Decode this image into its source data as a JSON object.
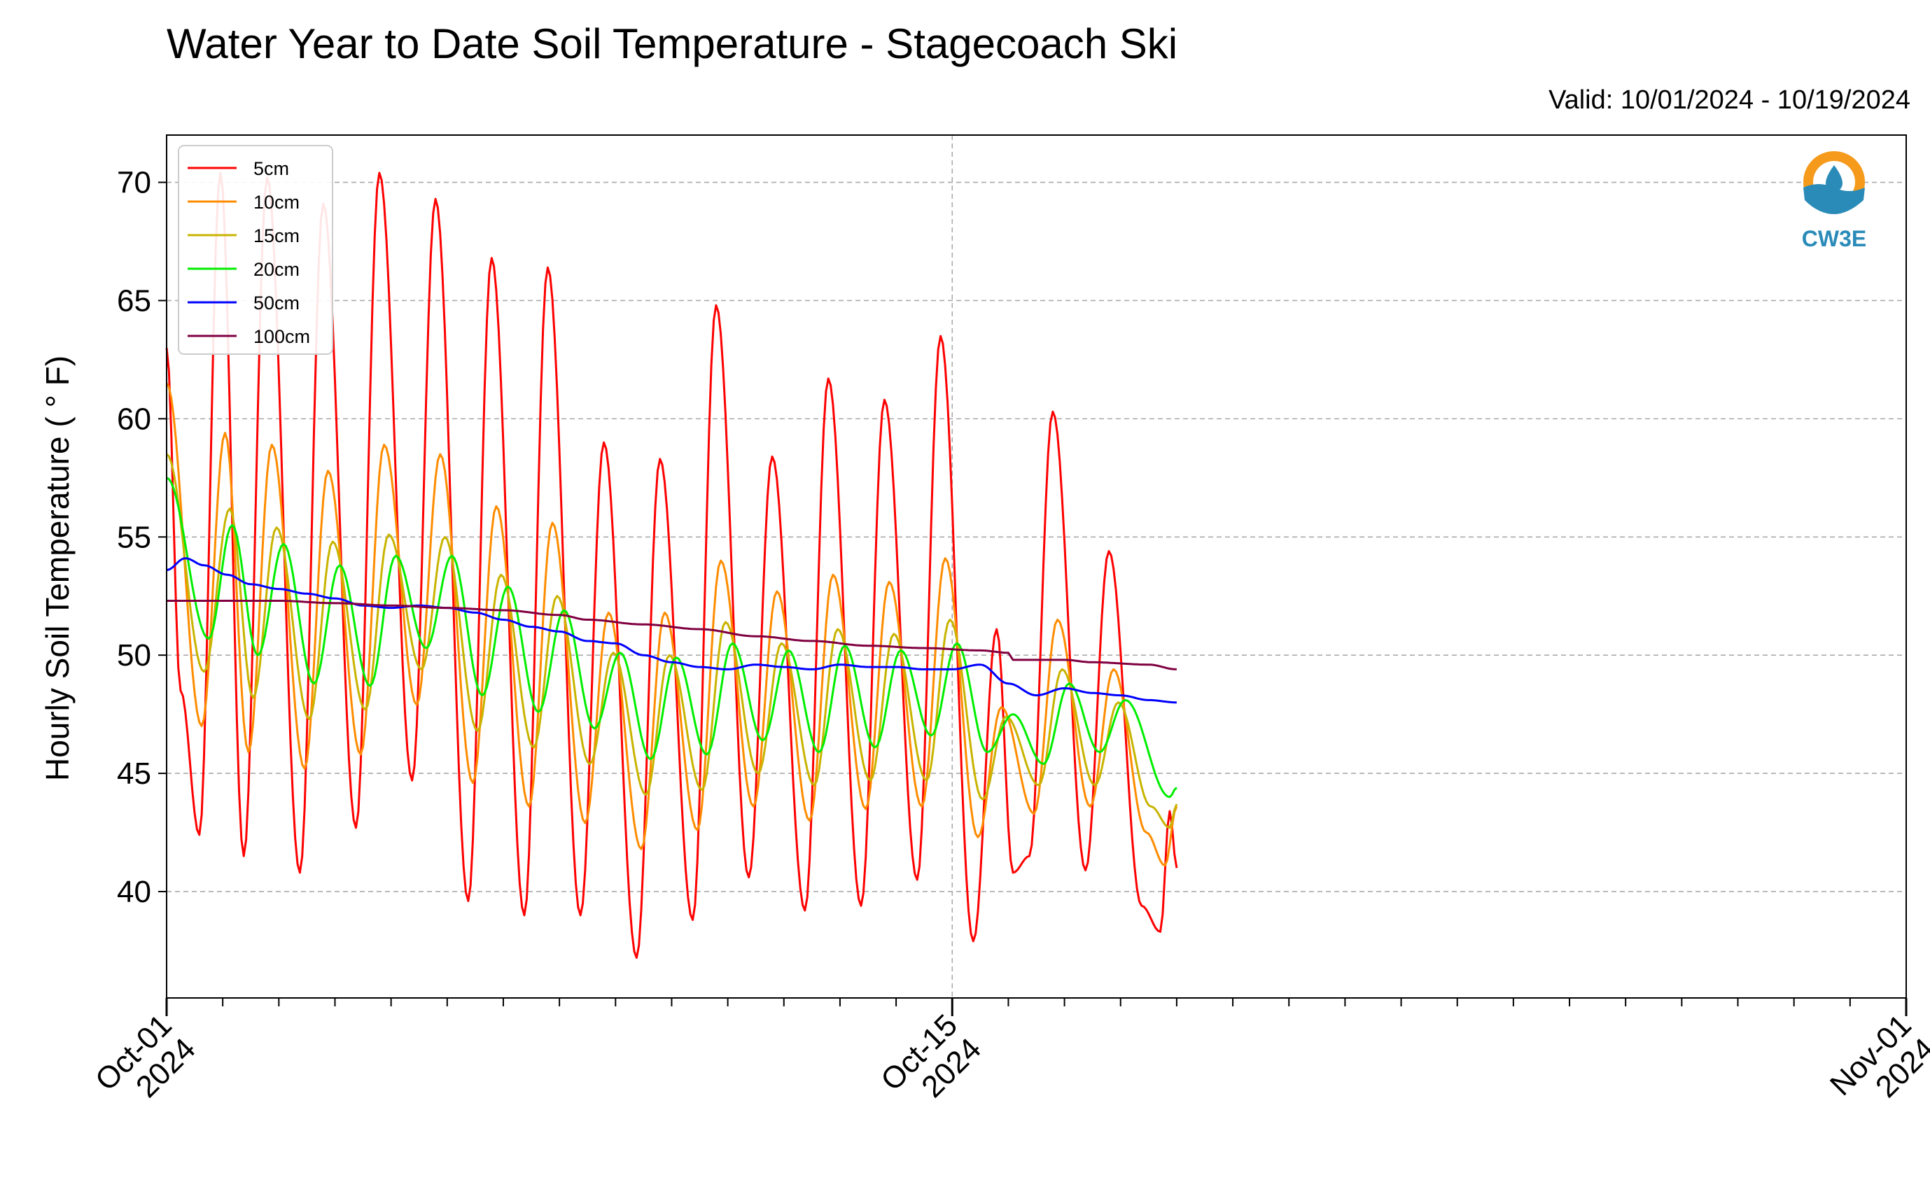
{
  "chart_data": {
    "type": "line",
    "title": "Water Year to Date Soil Temperature - Stagecoach Ski",
    "subtitle": "Valid: 10/01/2024 - 10/19/2024",
    "xlabel": "",
    "ylabel": "Hourly Soil Temperature ( ° F)",
    "xlim": [
      "2024-10-01",
      "2024-11-01"
    ],
    "ylim": [
      35.5,
      72
    ],
    "x_ticks": [
      {
        "date": "2024-10-01",
        "line1": "Oct-01",
        "line2": "2024"
      },
      {
        "date": "2024-10-15",
        "line1": "Oct-15",
        "line2": "2024"
      },
      {
        "date": "2024-11-01",
        "line1": "Nov-01",
        "line2": "2024"
      }
    ],
    "y_ticks": [
      40,
      45,
      50,
      55,
      60,
      65,
      70
    ],
    "grid": true,
    "legend_position": "top-left",
    "logo_text": "CW3E",
    "series": [
      {
        "name": "5cm",
        "color": "#ff0000",
        "points": [
          [
            "2024-10-01T00:00",
            63.0
          ],
          [
            "2024-10-01T06:00",
            48.5
          ],
          [
            "2024-10-01T14:00",
            42.4
          ],
          [
            "2024-10-01T23:00",
            70.4
          ],
          [
            "2024-10-02T09:00",
            41.5
          ],
          [
            "2024-10-02T19:00",
            70.2
          ],
          [
            "2024-10-03T09:00",
            40.8
          ],
          [
            "2024-10-03T19:00",
            69.1
          ],
          [
            "2024-10-04T09:00",
            42.7
          ],
          [
            "2024-10-04T19:00",
            70.4
          ],
          [
            "2024-10-05T09:00",
            44.7
          ],
          [
            "2024-10-05T19:00",
            69.3
          ],
          [
            "2024-10-06T09:00",
            39.6
          ],
          [
            "2024-10-06T19:00",
            66.8
          ],
          [
            "2024-10-07T09:00",
            39.0
          ],
          [
            "2024-10-07T19:00",
            66.4
          ],
          [
            "2024-10-08T09:00",
            39.0
          ],
          [
            "2024-10-08T19:00",
            59.0
          ],
          [
            "2024-10-09T09:00",
            37.2
          ],
          [
            "2024-10-09T19:00",
            58.3
          ],
          [
            "2024-10-10T09:00",
            38.8
          ],
          [
            "2024-10-10T19:00",
            64.8
          ],
          [
            "2024-10-11T09:00",
            40.6
          ],
          [
            "2024-10-11T19:00",
            58.4
          ],
          [
            "2024-10-12T09:00",
            39.2
          ],
          [
            "2024-10-12T19:00",
            61.7
          ],
          [
            "2024-10-13T09:00",
            39.4
          ],
          [
            "2024-10-13T19:00",
            60.8
          ],
          [
            "2024-10-14T09:00",
            40.5
          ],
          [
            "2024-10-14T19:00",
            63.5
          ],
          [
            "2024-10-15T09:00",
            37.9
          ],
          [
            "2024-10-15T19:00",
            51.1
          ],
          [
            "2024-10-16T02:00",
            40.8
          ],
          [
            "2024-10-16T09:00",
            41.5
          ],
          [
            "2024-10-16T19:00",
            60.3
          ],
          [
            "2024-10-17T09:00",
            40.9
          ],
          [
            "2024-10-17T19:00",
            54.4
          ],
          [
            "2024-10-18T09:00",
            39.4
          ],
          [
            "2024-10-18T17:00",
            38.3
          ],
          [
            "2024-10-18T21:00",
            43.4
          ],
          [
            "2024-10-19T00:00",
            41.0
          ]
        ]
      },
      {
        "name": "10cm",
        "color": "#ff8c00",
        "points": [
          [
            "2024-10-01T00:00",
            61.5
          ],
          [
            "2024-10-01T15:00",
            47.0
          ],
          [
            "2024-10-02T01:00",
            59.4
          ],
          [
            "2024-10-02T11:00",
            45.9
          ],
          [
            "2024-10-02T21:00",
            58.9
          ],
          [
            "2024-10-03T11:00",
            45.2
          ],
          [
            "2024-10-03T21:00",
            57.8
          ],
          [
            "2024-10-04T11:00",
            45.8
          ],
          [
            "2024-10-04T21:00",
            58.9
          ],
          [
            "2024-10-05T11:00",
            47.9
          ],
          [
            "2024-10-05T21:00",
            58.5
          ],
          [
            "2024-10-06T11:00",
            44.6
          ],
          [
            "2024-10-06T21:00",
            56.3
          ],
          [
            "2024-10-07T11:00",
            43.6
          ],
          [
            "2024-10-07T21:00",
            55.6
          ],
          [
            "2024-10-08T11:00",
            42.9
          ],
          [
            "2024-10-08T21:00",
            51.8
          ],
          [
            "2024-10-09T11:00",
            41.8
          ],
          [
            "2024-10-09T21:00",
            51.8
          ],
          [
            "2024-10-10T11:00",
            42.6
          ],
          [
            "2024-10-10T21:00",
            54.0
          ],
          [
            "2024-10-11T11:00",
            43.6
          ],
          [
            "2024-10-11T21:00",
            52.7
          ],
          [
            "2024-10-12T11:00",
            43.0
          ],
          [
            "2024-10-12T21:00",
            53.4
          ],
          [
            "2024-10-13T11:00",
            43.5
          ],
          [
            "2024-10-13T21:00",
            53.1
          ],
          [
            "2024-10-14T11:00",
            43.6
          ],
          [
            "2024-10-14T21:00",
            54.1
          ],
          [
            "2024-10-15T11:00",
            42.3
          ],
          [
            "2024-10-15T21:00",
            47.8
          ],
          [
            "2024-10-16T11:00",
            43.3
          ],
          [
            "2024-10-16T21:00",
            51.5
          ],
          [
            "2024-10-17T11:00",
            43.6
          ],
          [
            "2024-10-17T21:00",
            49.4
          ],
          [
            "2024-10-18T11:00",
            42.5
          ],
          [
            "2024-10-18T19:00",
            41.1
          ],
          [
            "2024-10-19T00:00",
            43.6
          ]
        ]
      },
      {
        "name": "15cm",
        "color": "#c8b400",
        "points": [
          [
            "2024-10-01T00:00",
            58.5
          ],
          [
            "2024-10-01T16:00",
            49.3
          ],
          [
            "2024-10-02T03:00",
            56.2
          ],
          [
            "2024-10-02T13:00",
            48.2
          ],
          [
            "2024-10-02T23:00",
            55.4
          ],
          [
            "2024-10-03T13:00",
            47.3
          ],
          [
            "2024-10-03T23:00",
            54.8
          ],
          [
            "2024-10-04T13:00",
            47.7
          ],
          [
            "2024-10-04T23:00",
            55.1
          ],
          [
            "2024-10-05T13:00",
            49.4
          ],
          [
            "2024-10-05T23:00",
            55.0
          ],
          [
            "2024-10-06T13:00",
            46.8
          ],
          [
            "2024-10-06T23:00",
            53.4
          ],
          [
            "2024-10-07T13:00",
            46.1
          ],
          [
            "2024-10-07T23:00",
            52.5
          ],
          [
            "2024-10-08T13:00",
            45.4
          ],
          [
            "2024-10-08T23:00",
            50.1
          ],
          [
            "2024-10-09T13:00",
            44.1
          ],
          [
            "2024-10-09T23:00",
            50.0
          ],
          [
            "2024-10-10T13:00",
            44.3
          ],
          [
            "2024-10-10T23:00",
            51.4
          ],
          [
            "2024-10-11T13:00",
            45.0
          ],
          [
            "2024-10-11T23:00",
            50.5
          ],
          [
            "2024-10-12T13:00",
            44.5
          ],
          [
            "2024-10-12T23:00",
            51.1
          ],
          [
            "2024-10-13T13:00",
            44.7
          ],
          [
            "2024-10-13T23:00",
            50.9
          ],
          [
            "2024-10-14T13:00",
            44.7
          ],
          [
            "2024-10-14T23:00",
            51.5
          ],
          [
            "2024-10-15T13:00",
            43.9
          ],
          [
            "2024-10-15T23:00",
            47.4
          ],
          [
            "2024-10-16T13:00",
            44.5
          ],
          [
            "2024-10-16T23:00",
            49.4
          ],
          [
            "2024-10-17T13:00",
            44.5
          ],
          [
            "2024-10-17T23:00",
            48.0
          ],
          [
            "2024-10-18T13:00",
            43.6
          ],
          [
            "2024-10-18T21:00",
            42.7
          ],
          [
            "2024-10-19T00:00",
            43.7
          ]
        ]
      },
      {
        "name": "20cm",
        "color": "#00ee00",
        "points": [
          [
            "2024-10-01T00:00",
            57.5
          ],
          [
            "2024-10-01T18:00",
            50.7
          ],
          [
            "2024-10-02T04:00",
            55.5
          ],
          [
            "2024-10-02T15:00",
            50.0
          ],
          [
            "2024-10-03T02:00",
            54.7
          ],
          [
            "2024-10-03T15:00",
            48.8
          ],
          [
            "2024-10-04T02:00",
            53.8
          ],
          [
            "2024-10-04T15:00",
            48.7
          ],
          [
            "2024-10-05T02:00",
            54.2
          ],
          [
            "2024-10-05T15:00",
            50.3
          ],
          [
            "2024-10-06T02:00",
            54.2
          ],
          [
            "2024-10-06T15:00",
            48.3
          ],
          [
            "2024-10-07T02:00",
            52.9
          ],
          [
            "2024-10-07T15:00",
            47.6
          ],
          [
            "2024-10-08T02:00",
            51.9
          ],
          [
            "2024-10-08T15:00",
            46.9
          ],
          [
            "2024-10-09T02:00",
            50.1
          ],
          [
            "2024-10-09T15:00",
            45.6
          ],
          [
            "2024-10-10T02:00",
            49.9
          ],
          [
            "2024-10-10T15:00",
            45.8
          ],
          [
            "2024-10-11T02:00",
            50.5
          ],
          [
            "2024-10-11T15:00",
            46.4
          ],
          [
            "2024-10-12T02:00",
            50.2
          ],
          [
            "2024-10-12T15:00",
            45.9
          ],
          [
            "2024-10-13T02:00",
            50.4
          ],
          [
            "2024-10-13T15:00",
            46.1
          ],
          [
            "2024-10-14T02:00",
            50.2
          ],
          [
            "2024-10-14T15:00",
            46.6
          ],
          [
            "2024-10-15T02:00",
            50.5
          ],
          [
            "2024-10-15T15:00",
            45.9
          ],
          [
            "2024-10-16T02:00",
            47.5
          ],
          [
            "2024-10-16T15:00",
            45.4
          ],
          [
            "2024-10-17T02:00",
            48.8
          ],
          [
            "2024-10-17T15:00",
            45.9
          ],
          [
            "2024-10-18T02:00",
            48.1
          ],
          [
            "2024-10-18T21:00",
            44.0
          ],
          [
            "2024-10-19T00:00",
            44.4
          ]
        ]
      },
      {
        "name": "50cm",
        "color": "#0000ff",
        "points": [
          [
            "2024-10-01T00:00",
            53.6
          ],
          [
            "2024-10-01T08:00",
            54.1
          ],
          [
            "2024-10-01T16:00",
            53.8
          ],
          [
            "2024-10-02T02:00",
            53.4
          ],
          [
            "2024-10-02T12:00",
            53.0
          ],
          [
            "2024-10-03T00:00",
            52.8
          ],
          [
            "2024-10-03T12:00",
            52.6
          ],
          [
            "2024-10-04T00:00",
            52.4
          ],
          [
            "2024-10-04T12:00",
            52.1
          ],
          [
            "2024-10-05T00:00",
            52.0
          ],
          [
            "2024-10-05T12:00",
            52.1
          ],
          [
            "2024-10-06T00:00",
            52.0
          ],
          [
            "2024-10-06T12:00",
            51.8
          ],
          [
            "2024-10-07T00:00",
            51.5
          ],
          [
            "2024-10-07T12:00",
            51.2
          ],
          [
            "2024-10-08T00:00",
            51.0
          ],
          [
            "2024-10-08T12:00",
            50.6
          ],
          [
            "2024-10-09T00:00",
            50.5
          ],
          [
            "2024-10-09T12:00",
            50.0
          ],
          [
            "2024-10-10T00:00",
            49.7
          ],
          [
            "2024-10-10T12:00",
            49.5
          ],
          [
            "2024-10-11T00:00",
            49.4
          ],
          [
            "2024-10-11T12:00",
            49.6
          ],
          [
            "2024-10-12T00:00",
            49.5
          ],
          [
            "2024-10-12T12:00",
            49.4
          ],
          [
            "2024-10-13T00:00",
            49.6
          ],
          [
            "2024-10-13T12:00",
            49.5
          ],
          [
            "2024-10-14T00:00",
            49.5
          ],
          [
            "2024-10-14T12:00",
            49.4
          ],
          [
            "2024-10-15T00:00",
            49.4
          ],
          [
            "2024-10-15T12:00",
            49.6
          ],
          [
            "2024-10-16T00:00",
            48.8
          ],
          [
            "2024-10-16T12:00",
            48.3
          ],
          [
            "2024-10-17T00:00",
            48.6
          ],
          [
            "2024-10-17T12:00",
            48.4
          ],
          [
            "2024-10-18T00:00",
            48.3
          ],
          [
            "2024-10-18T12:00",
            48.1
          ],
          [
            "2024-10-19T00:00",
            48.0
          ]
        ]
      },
      {
        "name": "100cm",
        "color": "#800040",
        "points": [
          [
            "2024-10-01T00:00",
            52.3
          ],
          [
            "2024-10-02T00:00",
            52.3
          ],
          [
            "2024-10-03T00:00",
            52.3
          ],
          [
            "2024-10-04T00:00",
            52.2
          ],
          [
            "2024-10-05T00:00",
            52.1
          ],
          [
            "2024-10-06T00:00",
            52.0
          ],
          [
            "2024-10-07T00:00",
            51.9
          ],
          [
            "2024-10-08T00:00",
            51.7
          ],
          [
            "2024-10-08T12:00",
            51.5
          ],
          [
            "2024-10-09T12:00",
            51.3
          ],
          [
            "2024-10-10T12:00",
            51.1
          ],
          [
            "2024-10-11T12:00",
            50.8
          ],
          [
            "2024-10-12T12:00",
            50.6
          ],
          [
            "2024-10-13T12:00",
            50.4
          ],
          [
            "2024-10-14T12:00",
            50.3
          ],
          [
            "2024-10-15T12:00",
            50.2
          ],
          [
            "2024-10-16T00:00",
            50.1
          ],
          [
            "2024-10-16T02:00",
            49.8
          ],
          [
            "2024-10-17T00:00",
            49.8
          ],
          [
            "2024-10-17T12:00",
            49.7
          ],
          [
            "2024-10-18T12:00",
            49.6
          ],
          [
            "2024-10-19T00:00",
            49.4
          ]
        ]
      }
    ]
  }
}
